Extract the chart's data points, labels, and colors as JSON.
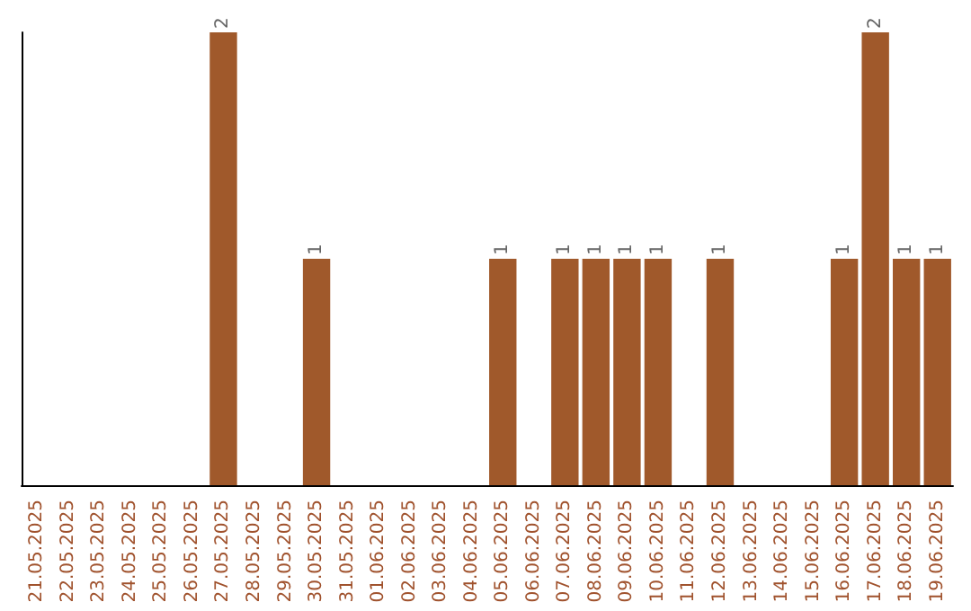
{
  "chart_data": {
    "type": "bar",
    "categories": [
      "21.05.2025",
      "22.05.2025",
      "23.05.2025",
      "24.05.2025",
      "25.05.2025",
      "26.05.2025",
      "27.05.2025",
      "28.05.2025",
      "29.05.2025",
      "30.05.2025",
      "31.05.2025",
      "01.06.2025",
      "02.06.2025",
      "03.06.2025",
      "04.06.2025",
      "05.06.2025",
      "06.06.2025",
      "07.06.2025",
      "08.06.2025",
      "09.06.2025",
      "10.06.2025",
      "11.06.2025",
      "12.06.2025",
      "13.06.2025",
      "14.06.2025",
      "15.06.2025",
      "16.06.2025",
      "17.06.2025",
      "18.06.2025",
      "19.06.2025"
    ],
    "values": [
      0,
      0,
      0,
      0,
      0,
      0,
      2,
      0,
      0,
      1,
      0,
      0,
      0,
      0,
      0,
      1,
      0,
      1,
      1,
      1,
      1,
      0,
      1,
      0,
      0,
      0,
      1,
      2,
      1,
      1
    ],
    "value_labels": [
      null,
      null,
      null,
      null,
      null,
      null,
      "2",
      null,
      null,
      "1",
      null,
      null,
      null,
      null,
      null,
      "1",
      null,
      "1",
      "1",
      "1",
      "1",
      null,
      "1",
      null,
      null,
      null,
      "1",
      "2",
      "1",
      "1"
    ],
    "color": "#a0592b",
    "grid": false,
    "tick_labels": "x"
  }
}
